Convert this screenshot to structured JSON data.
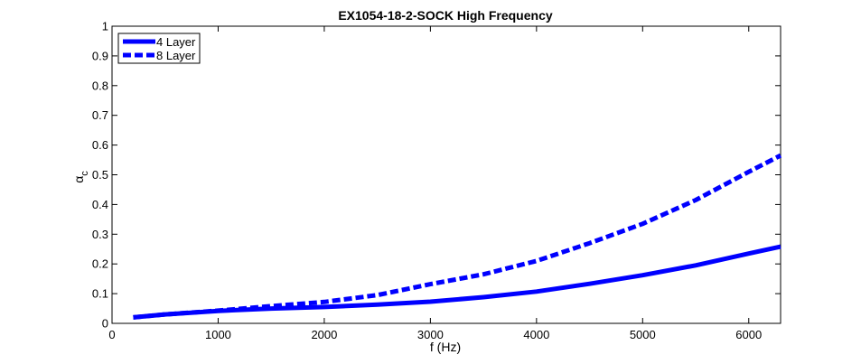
{
  "chart_data": {
    "type": "line",
    "title": "EX1054-18-2-SOCK High Frequency",
    "xlabel": "f (Hz)",
    "ylabel": "α",
    "ylabel_subscript": "c",
    "xlim": [
      0,
      6300
    ],
    "ylim": [
      0,
      1
    ],
    "xticks": [
      0,
      1000,
      2000,
      3000,
      4000,
      5000,
      6000
    ],
    "xtick_labels": [
      "0",
      "1000",
      "2000",
      "3000",
      "4000",
      "5000",
      "6000"
    ],
    "yticks": [
      0,
      0.1,
      0.2,
      0.3,
      0.4,
      0.5,
      0.6,
      0.7,
      0.8,
      0.9,
      1
    ],
    "ytick_labels": [
      "0",
      "0.1",
      "0.2",
      "0.3",
      "0.4",
      "0.5",
      "0.6",
      "0.7",
      "0.8",
      "0.9",
      "1"
    ],
    "grid": false,
    "legend_position": "top-left",
    "series": [
      {
        "name": "4 Layer",
        "color": "#0000ff",
        "style": "solid",
        "x": [
          200,
          500,
          1000,
          1500,
          2000,
          2500,
          3000,
          3500,
          4000,
          4500,
          5000,
          5500,
          6000,
          6300
        ],
        "y": [
          0.02,
          0.03,
          0.042,
          0.05,
          0.055,
          0.063,
          0.073,
          0.088,
          0.107,
          0.133,
          0.162,
          0.195,
          0.235,
          0.258
        ]
      },
      {
        "name": "8 Layer",
        "color": "#0000ff",
        "style": "dashed",
        "x": [
          200,
          500,
          1000,
          1500,
          2000,
          2500,
          3000,
          3500,
          4000,
          4500,
          5000,
          5500,
          6000,
          6300
        ],
        "y": [
          0.02,
          0.03,
          0.043,
          0.058,
          0.072,
          0.095,
          0.132,
          0.165,
          0.21,
          0.27,
          0.335,
          0.415,
          0.51,
          0.565
        ]
      }
    ]
  }
}
